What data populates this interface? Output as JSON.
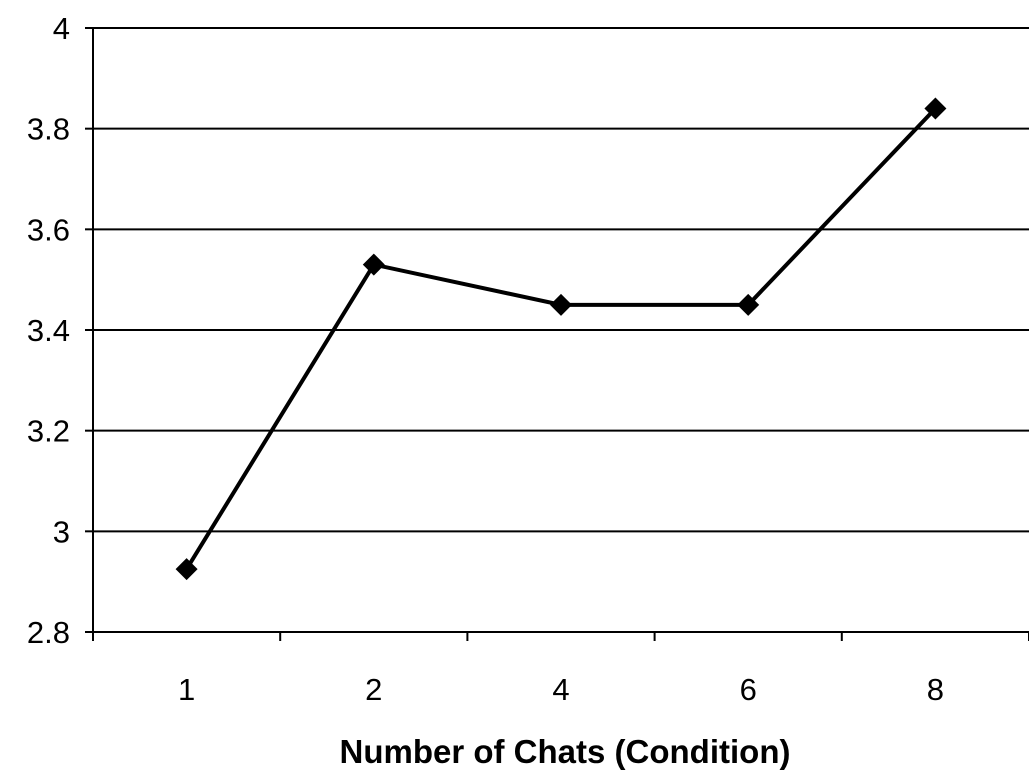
{
  "chart_data": {
    "type": "line",
    "title": "",
    "xlabel": "Number of Chats (Condition)",
    "ylabel": "",
    "categories": [
      "1",
      "2",
      "4",
      "6",
      "8"
    ],
    "series": [
      {
        "values": [
          2.925,
          3.53,
          3.45,
          3.45,
          3.84
        ]
      }
    ],
    "ylim": [
      2.8,
      4
    ],
    "yticks": [
      "2.8",
      "3",
      "3.2",
      "3.4",
      "3.6",
      "3.8",
      "4"
    ],
    "ytick_values": [
      2.8,
      3.0,
      3.2,
      3.4,
      3.6,
      3.8,
      4.0
    ],
    "grid": "horizontal",
    "marker": "diamond",
    "line_color": "#000000",
    "gridline_color": "#000000"
  }
}
